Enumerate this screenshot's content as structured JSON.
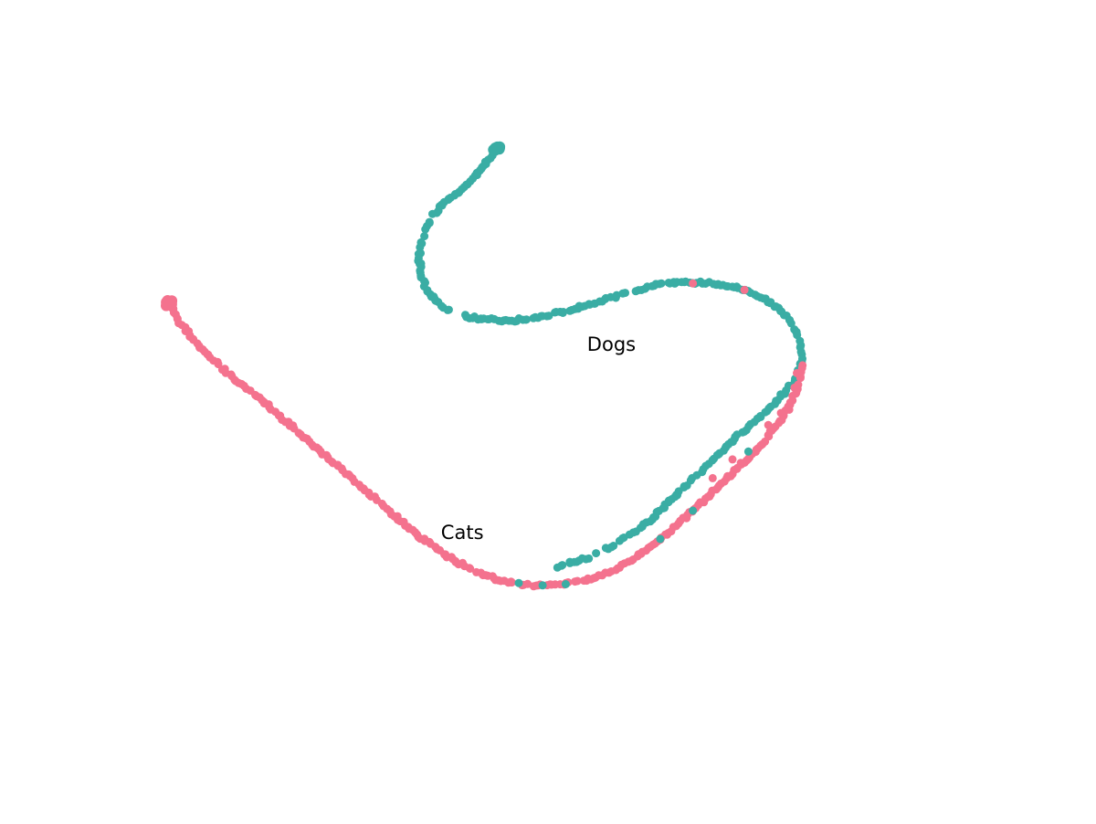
{
  "chart_data": {
    "type": "scatter",
    "title": "",
    "xlabel": "",
    "ylabel": "",
    "axes_visible": false,
    "grid": false,
    "legend": "none",
    "xlim": [
      0,
      100
    ],
    "ylim": [
      0,
      100
    ],
    "annotations": [
      {
        "text": "Dogs",
        "x": 53.2,
        "y": 61.5
      },
      {
        "text": "Cats",
        "x": 34.8,
        "y": 30.3
      }
    ],
    "series": [
      {
        "color": "#3aada4",
        "path": [
          [
            41.8,
            94.9
          ],
          [
            41.0,
            93.6
          ],
          [
            40.1,
            92.3
          ],
          [
            39.4,
            91.0
          ],
          [
            38.6,
            89.8
          ],
          [
            37.8,
            88.6
          ],
          [
            36.6,
            87.5
          ],
          [
            35.6,
            86.4
          ],
          [
            34.6,
            85.3
          ],
          [
            33.9,
            84.1
          ],
          [
            33.3,
            82.6
          ],
          [
            32.8,
            81.2
          ],
          [
            32.4,
            79.7
          ],
          [
            32.2,
            78.2
          ],
          [
            32.1,
            76.6
          ],
          [
            32.2,
            75.0
          ],
          [
            32.4,
            73.6
          ],
          [
            32.8,
            72.2
          ],
          [
            33.4,
            70.9
          ],
          [
            34.2,
            69.7
          ],
          [
            35.3,
            68.6
          ],
          [
            36.6,
            67.7
          ],
          [
            38.1,
            67.2
          ],
          [
            40.0,
            66.8
          ],
          [
            42.0,
            66.6
          ],
          [
            44.0,
            66.6
          ],
          [
            46.0,
            66.9
          ],
          [
            48.0,
            67.4
          ],
          [
            50.0,
            67.9
          ],
          [
            52.0,
            68.6
          ],
          [
            54.0,
            69.4
          ],
          [
            56.0,
            70.2
          ],
          [
            58.0,
            71.0
          ],
          [
            60.0,
            71.8
          ],
          [
            62.0,
            72.4
          ],
          [
            64.0,
            72.7
          ],
          [
            66.0,
            72.9
          ],
          [
            68.0,
            72.8
          ],
          [
            70.0,
            72.5
          ],
          [
            72.0,
            72.0
          ],
          [
            73.8,
            71.1
          ],
          [
            75.6,
            70.0
          ],
          [
            77.2,
            68.5
          ],
          [
            78.5,
            66.8
          ],
          [
            79.4,
            64.9
          ],
          [
            80.0,
            62.9
          ],
          [
            80.2,
            60.9
          ],
          [
            80.0,
            58.9
          ],
          [
            79.5,
            57.0
          ],
          [
            78.5,
            55.2
          ],
          [
            77.2,
            53.4
          ],
          [
            75.6,
            51.4
          ],
          [
            73.9,
            49.4
          ],
          [
            72.2,
            47.4
          ],
          [
            70.5,
            45.4
          ],
          [
            68.9,
            43.4
          ],
          [
            67.3,
            41.3
          ],
          [
            65.8,
            39.3
          ],
          [
            64.2,
            37.2
          ],
          [
            62.6,
            35.2
          ],
          [
            61.0,
            33.3
          ],
          [
            59.2,
            31.6
          ],
          [
            57.4,
            30.0
          ],
          [
            55.6,
            28.6
          ],
          [
            53.6,
            27.4
          ],
          [
            51.5,
            26.4
          ],
          [
            49.3,
            25.6
          ]
        ]
      },
      {
        "color": "#f4728e",
        "path": [
          [
            0.6,
            69.4
          ],
          [
            1.0,
            68.3
          ],
          [
            1.6,
            67.0
          ],
          [
            2.3,
            65.6
          ],
          [
            3.1,
            64.2
          ],
          [
            4.0,
            62.8
          ],
          [
            5.0,
            61.4
          ],
          [
            6.1,
            60.0
          ],
          [
            7.3,
            58.6
          ],
          [
            8.6,
            57.2
          ],
          [
            9.9,
            55.8
          ],
          [
            11.3,
            54.3
          ],
          [
            12.7,
            52.8
          ],
          [
            14.1,
            51.2
          ],
          [
            15.5,
            49.6
          ],
          [
            16.9,
            48.0
          ],
          [
            18.3,
            46.4
          ],
          [
            19.7,
            44.8
          ],
          [
            21.1,
            43.2
          ],
          [
            22.5,
            41.6
          ],
          [
            23.9,
            40.0
          ],
          [
            25.3,
            38.4
          ],
          [
            26.7,
            36.8
          ],
          [
            28.1,
            35.2
          ],
          [
            29.5,
            33.6
          ],
          [
            30.9,
            32.0
          ],
          [
            32.3,
            30.5
          ],
          [
            33.8,
            29.0
          ],
          [
            35.4,
            27.6
          ],
          [
            37.1,
            26.3
          ],
          [
            38.9,
            25.1
          ],
          [
            40.8,
            24.1
          ],
          [
            42.8,
            23.3
          ],
          [
            44.9,
            22.8
          ],
          [
            47.0,
            22.5
          ],
          [
            49.2,
            22.6
          ],
          [
            51.3,
            23.0
          ],
          [
            53.4,
            23.6
          ],
          [
            55.4,
            24.5
          ],
          [
            57.3,
            25.7
          ],
          [
            59.1,
            27.1
          ],
          [
            60.8,
            28.6
          ],
          [
            62.4,
            30.3
          ],
          [
            64.0,
            32.1
          ],
          [
            65.6,
            33.9
          ],
          [
            67.2,
            35.9
          ],
          [
            68.8,
            37.9
          ],
          [
            70.4,
            39.9
          ],
          [
            72.0,
            41.9
          ],
          [
            73.6,
            44.0
          ],
          [
            75.2,
            46.1
          ],
          [
            76.6,
            48.3
          ],
          [
            77.8,
            50.5
          ],
          [
            78.8,
            52.7
          ],
          [
            79.6,
            55.0
          ],
          [
            80.1,
            57.3
          ],
          [
            80.2,
            59.5
          ]
        ]
      }
    ]
  }
}
